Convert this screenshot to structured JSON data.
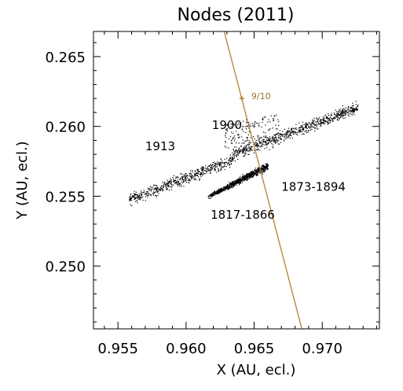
{
  "chart_data": {
    "type": "scatter",
    "title": "Nodes (2011)",
    "xlabel": "X (AU, ecl.)",
    "ylabel": "Y (AU, ecl.)",
    "xlim": [
      0.9532,
      0.9742
    ],
    "ylim": [
      0.2455,
      0.2668
    ],
    "xticks": [
      0.955,
      0.96,
      0.965,
      0.97
    ],
    "xtick_labels": [
      "0.955",
      "0.960",
      "0.965",
      "0.970"
    ],
    "yticks": [
      0.25,
      0.255,
      0.26,
      0.265
    ],
    "ytick_labels": [
      "0.250",
      "0.255",
      "0.260",
      "0.265"
    ],
    "grid": false,
    "legend": "none",
    "colors": {
      "points": "#000000",
      "orbit": "#b8893e",
      "orbit_text": "#a0702a",
      "frame": "#000000"
    },
    "clusters": [
      {
        "label": "1900",
        "x_range": [
          0.9625,
          0.9665
        ],
        "y_range": [
          0.2575,
          0.2605
        ]
      },
      {
        "label": "1913",
        "x_range": [
          0.9555,
          0.9725
        ],
        "y_range": [
          0.2538,
          0.2614
        ]
      },
      {
        "label": "1817-1866",
        "x_range": [
          0.9615,
          0.9655
        ],
        "y_range": [
          0.2548,
          0.2572
        ]
      },
      {
        "label": "1873-1894",
        "x_range": [
          0.964,
          0.97
        ],
        "y_range": [
          0.256,
          0.26
        ]
      }
    ],
    "annotations": [
      {
        "text": "1900",
        "x": 0.9619,
        "y": 0.2598
      },
      {
        "text": "1913",
        "x": 0.957,
        "y": 0.2583
      },
      {
        "text": "1817-1866",
        "x": 0.9618,
        "y": 0.2534
      },
      {
        "text": "1873-1894",
        "x": 0.967,
        "y": 0.2554
      }
    ],
    "orbit_line": {
      "x1": 0.9628,
      "y1": 0.2668,
      "x2": 0.9685,
      "y2": 0.2455
    },
    "orbit_marker": {
      "label": "9/10",
      "x": 0.9641,
      "y": 0.262
    }
  }
}
